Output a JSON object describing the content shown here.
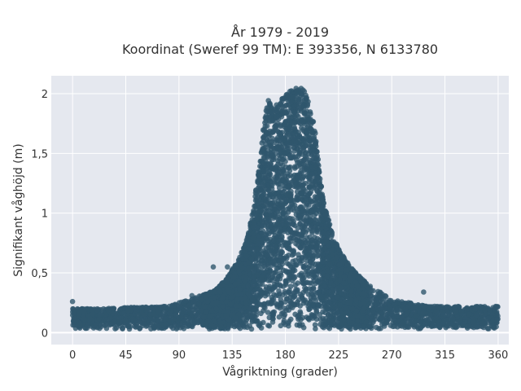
{
  "chart_data": {
    "type": "scatter",
    "title_lines": [
      "År 1979 - 2019",
      "Koordinat (Sweref 99 TM): E 393356, N 6133780"
    ],
    "xlabel": "Vågriktning (grader)",
    "ylabel": "Signifikant våghöjd (m)",
    "xlim": [
      -18,
      369
    ],
    "ylim": [
      -0.1,
      2.15
    ],
    "xticks": [
      0,
      45,
      90,
      135,
      180,
      225,
      270,
      315,
      360
    ],
    "xtick_labels": [
      "0",
      "45",
      "90",
      "135",
      "180",
      "225",
      "270",
      "315",
      "360"
    ],
    "yticks": [
      0,
      0.5,
      1,
      1.5,
      2
    ],
    "ytick_labels": [
      "0",
      "0,5",
      "1",
      "1,5",
      "2"
    ],
    "grid": true,
    "marker_color": "#2f566d",
    "background": "#e5e8ef",
    "envelope": {
      "direction": [
        0,
        20,
        45,
        80,
        100,
        120,
        130,
        140,
        148,
        153,
        158,
        162,
        165,
        170,
        175,
        180,
        185,
        190,
        195,
        200,
        205,
        208,
        212,
        218,
        225,
        235,
        250,
        270,
        300,
        330,
        360
      ],
      "max_height": [
        0.2,
        0.2,
        0.21,
        0.22,
        0.28,
        0.35,
        0.45,
        0.6,
        0.8,
        1.05,
        1.4,
        1.78,
        1.95,
        1.9,
        1.92,
        2.0,
        2.03,
        2.06,
        2.05,
        1.95,
        1.7,
        1.45,
        1.1,
        0.9,
        0.7,
        0.55,
        0.4,
        0.28,
        0.22,
        0.22,
        0.22
      ],
      "min_height": 0.03
    },
    "outliers": [
      {
        "x": 0,
        "y": 0.26
      },
      {
        "x": 101,
        "y": 0.31
      },
      {
        "x": 119,
        "y": 0.55
      },
      {
        "x": 131,
        "y": 0.55
      },
      {
        "x": 297,
        "y": 0.34
      },
      {
        "x": 310,
        "y": 0.06
      }
    ]
  }
}
